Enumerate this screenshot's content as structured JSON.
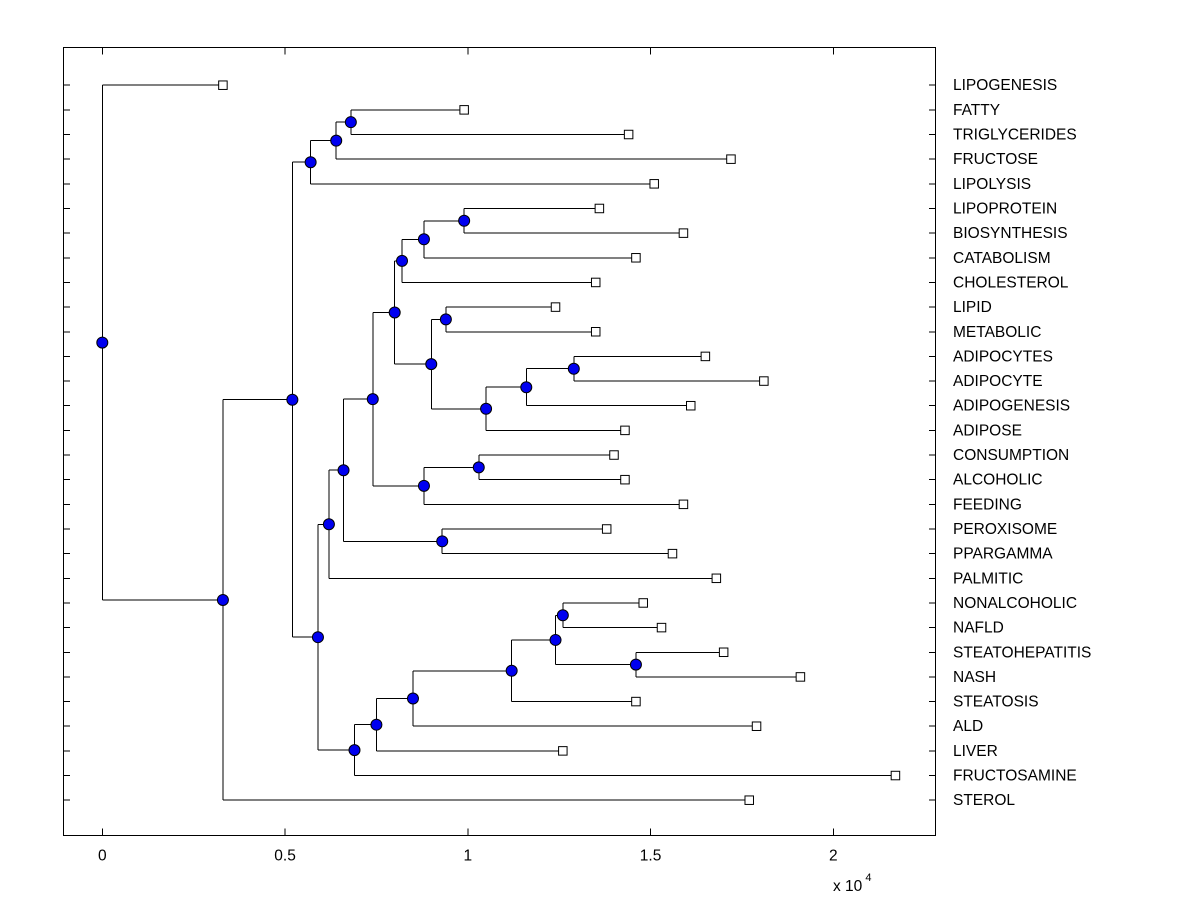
{
  "figure": {
    "background": "#ffffff"
  },
  "chart_data": {
    "type": "dendrogram",
    "orientation": "left-to-right",
    "units": "x 10^4",
    "colors": {
      "line": "#000000",
      "node_marker_fill": "#0000f0",
      "node_marker_edge": "#000000",
      "leaf_marker_fill": "#ffffff",
      "leaf_marker_edge": "#000000",
      "plot_border": "#000000"
    },
    "markers": {
      "internal_node": "filled-circle",
      "leaf_node": "open-square"
    },
    "x_axis": {
      "tick_labels": [
        "0",
        "0.5",
        "1",
        "1.5",
        "2"
      ],
      "tick_values": [
        0,
        0.5,
        1,
        1.5,
        2
      ],
      "multiplier_base": "x 10",
      "multiplier_exponent": "4",
      "range": [
        -0.107,
        2.281
      ]
    },
    "leaves": [
      {
        "label": "LIPOGENESIS",
        "distance": 0.33
      },
      {
        "label": "FATTY",
        "distance": 0.99
      },
      {
        "label": "TRIGLYCERIDES",
        "distance": 1.44
      },
      {
        "label": "FRUCTOSE",
        "distance": 1.72
      },
      {
        "label": "LIPOLYSIS",
        "distance": 1.51
      },
      {
        "label": "LIPOPROTEIN",
        "distance": 1.36
      },
      {
        "label": "BIOSYNTHESIS",
        "distance": 1.59
      },
      {
        "label": "CATABOLISM",
        "distance": 1.46
      },
      {
        "label": "CHOLESTEROL",
        "distance": 1.35
      },
      {
        "label": "LIPID",
        "distance": 1.24
      },
      {
        "label": "METABOLIC",
        "distance": 1.35
      },
      {
        "label": "ADIPOCYTES",
        "distance": 1.65
      },
      {
        "label": "ADIPOCYTE",
        "distance": 1.81
      },
      {
        "label": "ADIPOGENESIS",
        "distance": 1.61
      },
      {
        "label": "ADIPOSE",
        "distance": 1.43
      },
      {
        "label": "CONSUMPTION",
        "distance": 1.4
      },
      {
        "label": "ALCOHOLIC",
        "distance": 1.43
      },
      {
        "label": "FEEDING",
        "distance": 1.59
      },
      {
        "label": "PEROXISOME",
        "distance": 1.38
      },
      {
        "label": "PPARGAMMA",
        "distance": 1.56
      },
      {
        "label": "PALMITIC",
        "distance": 1.68
      },
      {
        "label": "NONALCOHOLIC",
        "distance": 1.48
      },
      {
        "label": "NAFLD",
        "distance": 1.53
      },
      {
        "label": "STEATOHEPATITIS",
        "distance": 1.7
      },
      {
        "label": "NASH",
        "distance": 1.91
      },
      {
        "label": "STEATOSIS",
        "distance": 1.46
      },
      {
        "label": "ALD",
        "distance": 1.79
      },
      {
        "label": "LIVER",
        "distance": 1.26
      },
      {
        "label": "FRUCTOSAMINE",
        "distance": 2.17
      },
      {
        "label": "STEROL",
        "distance": 1.77
      }
    ],
    "tree": {
      "h": 0.0,
      "c": [
        0,
        {
          "h": 0.33,
          "c": [
            {
              "h": 0.52,
              "c": [
                {
                  "h": 0.57,
                  "c": [
                    {
                      "h": 0.64,
                      "c": [
                        {
                          "h": 0.68,
                          "c": [
                            1,
                            2
                          ]
                        },
                        3
                      ]
                    },
                    4
                  ]
                },
                {
                  "h": 0.59,
                  "c": [
                    {
                      "h": 0.62,
                      "c": [
                        {
                          "h": 0.66,
                          "c": [
                            {
                              "h": 0.74,
                              "c": [
                                {
                                  "h": 0.8,
                                  "c": [
                                    {
                                      "h": 0.82,
                                      "c": [
                                        {
                                          "h": 0.88,
                                          "c": [
                                            {
                                              "h": 0.99,
                                              "c": [
                                                5,
                                                6
                                              ]
                                            },
                                            7
                                          ]
                                        },
                                        8
                                      ]
                                    },
                                    {
                                      "h": 0.9,
                                      "c": [
                                        {
                                          "h": 0.94,
                                          "c": [
                                            9,
                                            10
                                          ]
                                        },
                                        {
                                          "h": 1.05,
                                          "c": [
                                            {
                                              "h": 1.16,
                                              "c": [
                                                {
                                                  "h": 1.29,
                                                  "c": [
                                                    11,
                                                    12
                                                  ]
                                                },
                                                13
                                              ]
                                            },
                                            14
                                          ]
                                        }
                                      ]
                                    }
                                  ]
                                },
                                {
                                  "h": 0.88,
                                  "c": [
                                    {
                                      "h": 1.03,
                                      "c": [
                                        15,
                                        16
                                      ]
                                    },
                                    17
                                  ]
                                }
                              ]
                            },
                            {
                              "h": 0.93,
                              "c": [
                                18,
                                19
                              ]
                            }
                          ]
                        },
                        20
                      ]
                    },
                    {
                      "h": 0.69,
                      "c": [
                        {
                          "h": 0.75,
                          "c": [
                            {
                              "h": 0.85,
                              "c": [
                                {
                                  "h": 1.12,
                                  "c": [
                                    {
                                      "h": 1.24,
                                      "c": [
                                        {
                                          "h": 1.26,
                                          "c": [
                                            21,
                                            22
                                          ]
                                        },
                                        {
                                          "h": 1.46,
                                          "c": [
                                            23,
                                            24
                                          ]
                                        }
                                      ]
                                    },
                                    25
                                  ]
                                },
                                26
                              ]
                            },
                            27
                          ]
                        },
                        28
                      ]
                    }
                  ]
                }
              ]
            },
            29
          ]
        }
      ]
    }
  }
}
